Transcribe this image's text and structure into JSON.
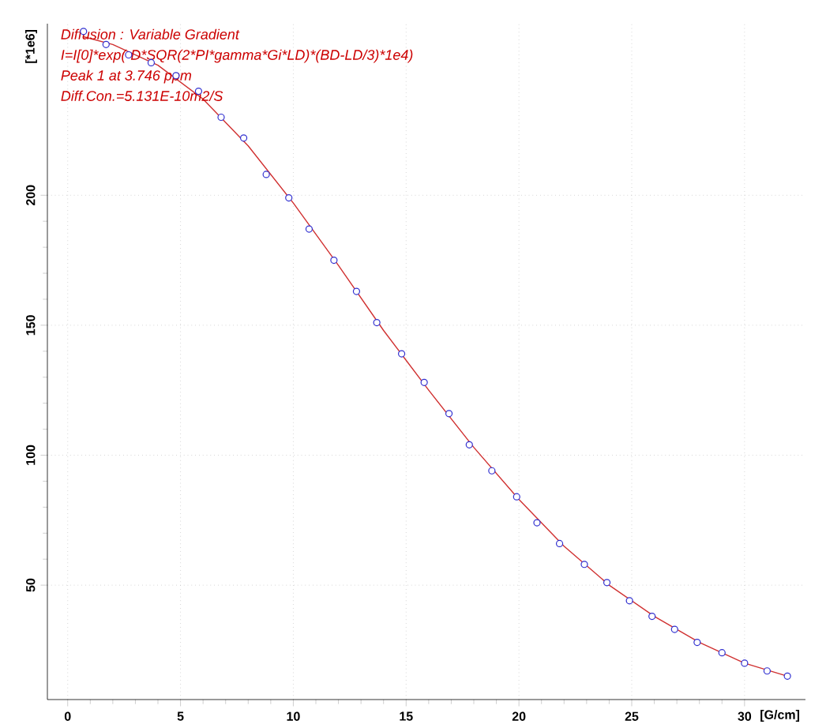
{
  "chart_data": {
    "type": "scatter",
    "xlabel": "[G/cm]",
    "ylabel": "[*1e6]",
    "annotations": [
      "Diffusion : Variable Gradient",
      "I=I[0]*exp(-D*SQR(2*PI*gamma*Gi*LD)*(BD-LD/3)*1e4)",
      "Peak 1 at 3.746 ppm",
      "Diff.Con.=5.131E-10m2/S"
    ],
    "xlim": [
      -0.9,
      32.7
    ],
    "ylim": [
      6,
      266
    ],
    "xticks": [
      0,
      5,
      10,
      15,
      20,
      25,
      30
    ],
    "yticks": [
      50,
      100,
      150,
      200
    ],
    "grid": true,
    "marker": "circle",
    "series": [
      {
        "color": "#3030d0",
        "x": [
          0.7,
          1.7,
          2.7,
          3.7,
          4.8,
          5.8,
          6.8,
          7.8,
          8.8,
          9.8,
          10.7,
          11.8,
          12.8,
          13.7,
          14.8,
          15.8,
          16.9,
          17.8,
          18.8,
          19.9,
          20.8,
          21.8,
          22.9,
          23.9,
          24.9,
          25.9,
          26.9,
          27.9,
          29.0,
          30.0,
          31.0,
          31.9
        ],
        "values": [
          263,
          258,
          254,
          251,
          246,
          240,
          230,
          222,
          208,
          199,
          187,
          175,
          163,
          151,
          139,
          128,
          116,
          104,
          94,
          84,
          74,
          66,
          58,
          51,
          44,
          38,
          33,
          28,
          24,
          20,
          17,
          15
        ]
      },
      {
        "type": "line",
        "color": "#d03030",
        "marker": "none",
        "line_style": "solid",
        "x": [
          0.7,
          2,
          4,
          6,
          8,
          10,
          12,
          14,
          16,
          18,
          20,
          22,
          24,
          26,
          28,
          30,
          31.9
        ],
        "values": [
          261,
          258,
          250,
          237,
          219,
          197,
          173,
          148,
          125,
          103,
          83,
          65,
          50,
          38,
          28,
          20,
          15
        ]
      }
    ]
  }
}
